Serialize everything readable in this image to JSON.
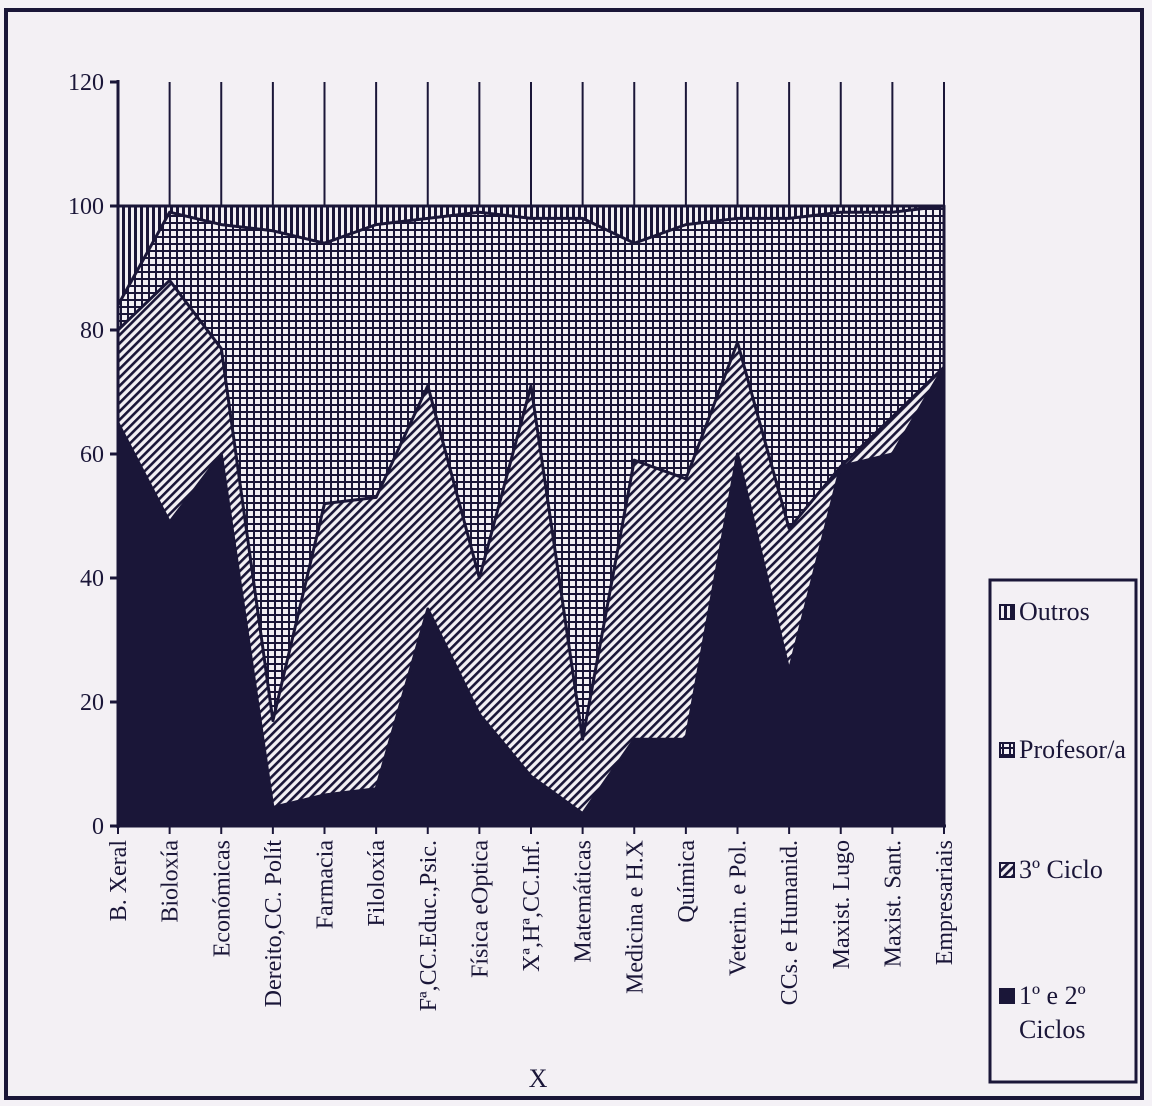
{
  "chart_data": {
    "type": "area",
    "stacked": true,
    "xlabel": "X",
    "ylabel": "",
    "ylim": [
      0,
      120
    ],
    "yticks": [
      "0",
      "20",
      "40",
      "60",
      "80",
      "100",
      "120"
    ],
    "categories": [
      "B. Xeral",
      "Bioloxía",
      "Económicas",
      "Dereito,CC. Polít",
      "Farmacia",
      "Filoloxía",
      "Fª,CC.Educ.,Psic.",
      "Física eOptica",
      "Xª,Hª,CC.Inf.",
      "Matemáticas",
      "Medicina e H.X",
      "Química",
      "Veterin. e Pol.",
      "CCs. e Humanid.",
      "Maxist. Lugo",
      "Maxist. Sant.",
      "Empresariais"
    ],
    "cumulative": {
      "1o e 2o Ciclos": [
        65,
        49,
        60,
        3,
        5,
        6,
        35,
        18,
        8,
        2,
        14,
        14,
        60,
        25,
        58,
        60,
        74
      ],
      "3o Ciclo": [
        80,
        88,
        77,
        17,
        52,
        53,
        71,
        40,
        71,
        14,
        59,
        56,
        78,
        48,
        58,
        66,
        74
      ],
      "Profesor/a": [
        84,
        99,
        97,
        96,
        94,
        97,
        98,
        99,
        98,
        98,
        94,
        97,
        98,
        98,
        99,
        99,
        100
      ],
      "Outros": [
        100,
        100,
        100,
        100,
        100,
        100,
        100,
        100,
        100,
        100,
        100,
        100,
        100,
        100,
        100,
        100,
        100
      ]
    },
    "series": [
      {
        "name": "1º e 2º Ciclos",
        "values": [
          65,
          49,
          60,
          3,
          5,
          6,
          35,
          18,
          8,
          2,
          14,
          14,
          60,
          25,
          58,
          60,
          74
        ]
      },
      {
        "name": "3º Ciclo",
        "values": [
          15,
          39,
          17,
          14,
          47,
          47,
          36,
          22,
          63,
          12,
          45,
          42,
          18,
          23,
          0,
          6,
          0
        ]
      },
      {
        "name": "Profesor/a",
        "values": [
          4,
          11,
          20,
          79,
          42,
          44,
          27,
          59,
          27,
          84,
          35,
          41,
          20,
          50,
          41,
          33,
          26
        ]
      },
      {
        "name": "Outros",
        "values": [
          16,
          1,
          3,
          4,
          6,
          3,
          2,
          1,
          2,
          2,
          6,
          3,
          2,
          2,
          1,
          1,
          0
        ]
      }
    ],
    "legend": {
      "placement": "right",
      "entries": [
        "Outros",
        "Profesor/a",
        "3º Ciclo",
        "1º e 2º",
        "Ciclos"
      ]
    },
    "colors": {
      "dark": "#1a1638",
      "background": "#f3f0f4"
    }
  }
}
